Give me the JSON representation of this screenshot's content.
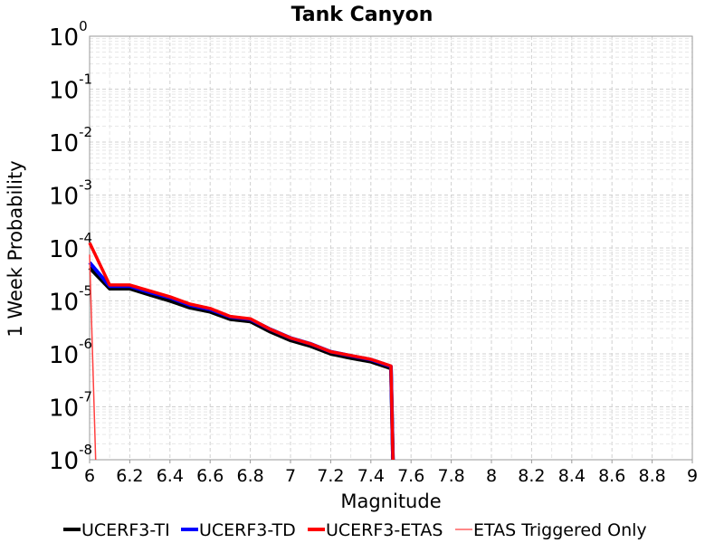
{
  "chart_data": {
    "type": "line",
    "title": "Tank Canyon",
    "xlabel": "Magnitude",
    "ylabel": "1 Week Probability",
    "xlim": [
      6,
      9
    ],
    "ylim": [
      1e-08,
      1
    ],
    "yscale": "log",
    "grid": true,
    "legend_position": "bottom",
    "xticks": [
      "6",
      "6.2",
      "6.4",
      "6.6",
      "6.8",
      "7",
      "7.2",
      "7.4",
      "7.6",
      "7.8",
      "8",
      "8.2",
      "8.4",
      "8.6",
      "8.8",
      "9"
    ],
    "yticks": [
      {
        "base": "10",
        "exp": "0"
      },
      {
        "base": "10",
        "exp": "-1"
      },
      {
        "base": "10",
        "exp": "-2"
      },
      {
        "base": "10",
        "exp": "-3"
      },
      {
        "base": "10",
        "exp": "-4"
      },
      {
        "base": "10",
        "exp": "-5"
      },
      {
        "base": "10",
        "exp": "-6"
      },
      {
        "base": "10",
        "exp": "-7"
      },
      {
        "base": "10",
        "exp": "-8"
      }
    ],
    "series": [
      {
        "name": "UCERF3-TI",
        "color": "#000000",
        "x": [
          6.0,
          6.1,
          6.2,
          6.3,
          6.4,
          6.5,
          6.6,
          6.7,
          6.8,
          6.9,
          7.0,
          7.1,
          7.2,
          7.3,
          7.4,
          7.5,
          7.51
        ],
        "y": [
          4.2e-05,
          1.7e-05,
          1.7e-05,
          1.3e-05,
          1e-05,
          7.4e-06,
          6.2e-06,
          4.5e-06,
          4.1e-06,
          2.6e-06,
          1.8e-06,
          1.4e-06,
          1e-06,
          8.3e-07,
          7.1e-07,
          5.3e-07,
          1e-08
        ]
      },
      {
        "name": "UCERF3-TD",
        "color": "#0000ff",
        "x": [
          6.0,
          6.1,
          6.2,
          6.3,
          6.4,
          6.5,
          6.6,
          6.7,
          6.8,
          6.9,
          7.0,
          7.1,
          7.2,
          7.3,
          7.4,
          7.5,
          7.51
        ],
        "y": [
          5.3e-05,
          1.9e-05,
          1.9e-05,
          1.45e-05,
          1.15e-05,
          8.3e-06,
          6.9e-06,
          5e-06,
          4.5e-06,
          2.9e-06,
          2e-06,
          1.55e-06,
          1.1e-06,
          9.2e-07,
          7.8e-07,
          5.8e-07,
          1e-08
        ]
      },
      {
        "name": "UCERF3-ETAS",
        "color": "#ff0000",
        "x": [
          6.0,
          6.1,
          6.2,
          6.3,
          6.4,
          6.5,
          6.6,
          6.7,
          6.8,
          6.9,
          7.0,
          7.1,
          7.2,
          7.3,
          7.4,
          7.5,
          7.51
        ],
        "y": [
          0.000125,
          2e-05,
          2e-05,
          1.55e-05,
          1.2e-05,
          8.7e-06,
          7.2e-06,
          5.1e-06,
          4.6e-06,
          2.9e-06,
          2e-06,
          1.55e-06,
          1.1e-06,
          9.3e-07,
          7.9e-07,
          5.9e-07,
          1e-08
        ]
      },
      {
        "name": "ETAS Triggered Only",
        "color": "#ff4040",
        "x": [
          6.0,
          6.03
        ],
        "y": [
          7.5e-05,
          1e-08
        ]
      }
    ]
  }
}
